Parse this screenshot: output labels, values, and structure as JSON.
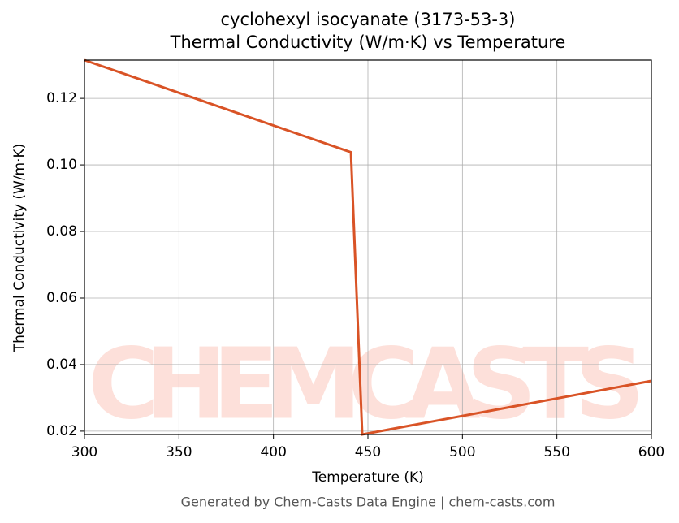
{
  "chart_data": {
    "type": "line",
    "title": "cyclohexyl isocyanate (3173-53-3)",
    "subtitle": "Thermal Conductivity (W/m·K) vs Temperature",
    "x_label": "Temperature (K)",
    "y_label": "Thermal Conductivity (W/m·K)",
    "footer": "Generated by Chem-Casts Data Engine | chem-casts.com",
    "watermark": "CHEMCASTS",
    "x": [
      300,
      441,
      447,
      600
    ],
    "series": [
      {
        "name": "Thermal Conductivity",
        "color": "#d95326",
        "values": [
          0.1315,
          0.1038,
          0.019,
          0.0351
        ]
      }
    ],
    "xlim": [
      300,
      600
    ],
    "ylim": [
      0.019,
      0.1315
    ],
    "xticks": [
      300,
      350,
      400,
      450,
      500,
      550,
      600
    ],
    "yticks": [
      {
        "value": 0.02,
        "label": "0.02"
      },
      {
        "value": 0.04,
        "label": "0.04"
      },
      {
        "value": 0.06,
        "label": "0.06"
      },
      {
        "value": 0.08,
        "label": "0.08"
      },
      {
        "value": 0.1,
        "label": "0.10"
      },
      {
        "value": 0.12,
        "label": "0.12"
      }
    ],
    "grid": true
  }
}
